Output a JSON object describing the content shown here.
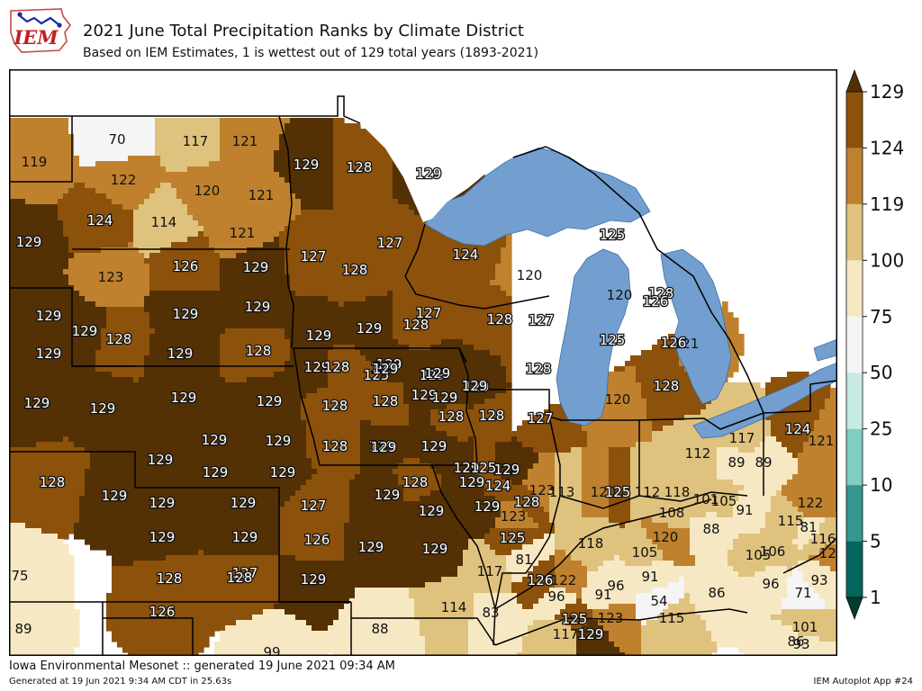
{
  "header": {
    "title": "2021 June Total Precipitation Ranks by Climate District",
    "subtitle": "Based on IEM Estimates, 1 is wettest out of 129 total years (1893-2021)",
    "logo_text": "IEM"
  },
  "footer": {
    "main": "Iowa Environmental Mesonet :: generated 19 June 2021 09:34 AM",
    "generated": "Generated at 19 Jun 2021 9:34 AM CDT in 25.63s",
    "app": "IEM Autoplot App #24"
  },
  "colors": {
    "water": "#729fcf",
    "land_blank": "#ffffff",
    "state_border": "#000000"
  },
  "colorbar": {
    "ticks": [
      "1",
      "5",
      "10",
      "25",
      "50",
      "75",
      "100",
      "119",
      "124",
      "129"
    ],
    "bins": [
      {
        "from": 1,
        "to": 5,
        "color": "#01665e"
      },
      {
        "from": 5,
        "to": 10,
        "color": "#35978f"
      },
      {
        "from": 10,
        "to": 25,
        "color": "#80cdc1"
      },
      {
        "from": 25,
        "to": 50,
        "color": "#c7eae5"
      },
      {
        "from": 50,
        "to": 75,
        "color": "#f5f5f5"
      },
      {
        "from": 75,
        "to": 100,
        "color": "#f6e8c3"
      },
      {
        "from": 100,
        "to": 119,
        "color": "#dfc27d"
      },
      {
        "from": 119,
        "to": 124,
        "color": "#bf812d"
      },
      {
        "from": 124,
        "to": 129,
        "color": "#8c510a"
      }
    ],
    "over_color": "#543005",
    "under_color": "#003c30"
  },
  "districts": [
    {
      "rank": 70
    },
    {
      "rank": 117
    },
    {
      "rank": 121
    },
    {
      "rank": 119
    },
    {
      "rank": 122
    },
    {
      "rank": 120
    },
    {
      "rank": 121
    },
    {
      "rank": 124
    },
    {
      "rank": 114
    },
    {
      "rank": 121
    },
    {
      "rank": 129
    },
    {
      "rank": 123
    },
    {
      "rank": 126
    },
    {
      "rank": 129
    },
    {
      "rank": 129
    },
    {
      "rank": 129
    },
    {
      "rank": 129
    },
    {
      "rank": 128
    },
    {
      "rank": 129
    },
    {
      "rank": 129
    },
    {
      "rank": 129
    },
    {
      "rank": 128
    },
    {
      "rank": 129
    },
    {
      "rank": 129
    },
    {
      "rank": 129
    },
    {
      "rank": 129
    },
    {
      "rank": 129
    },
    {
      "rank": 129
    },
    {
      "rank": 128
    },
    {
      "rank": 128
    },
    {
      "rank": 129
    },
    {
      "rank": 128
    },
    {
      "rank": 129
    },
    {
      "rank": 129
    },
    {
      "rank": 129
    },
    {
      "rank": 129
    },
    {
      "rank": 129
    },
    {
      "rank": 128
    },
    {
      "rank": 129
    },
    {
      "rank": 129
    },
    {
      "rank": 129
    },
    {
      "rank": 129
    },
    {
      "rank": 127
    },
    {
      "rank": 129
    },
    {
      "rank": 129
    },
    {
      "rank": 126
    },
    {
      "rank": 127
    },
    {
      "rank": 128
    },
    {
      "rank": 128
    },
    {
      "rank": 129
    },
    {
      "rank": 129
    },
    {
      "rank": 128
    },
    {
      "rank": 129
    },
    {
      "rank": 127
    },
    {
      "rank": 128
    },
    {
      "rank": 127
    },
    {
      "rank": 128
    },
    {
      "rank": 126
    },
    {
      "rank": 99
    },
    {
      "rank": 75
    },
    {
      "rank": 89
    },
    {
      "rank": 129
    },
    {
      "rank": 129
    },
    {
      "rank": 129
    },
    {
      "rank": 129
    },
    {
      "rank": 127
    },
    {
      "rank": 129
    },
    {
      "rank": 129
    },
    {
      "rank": 129
    },
    {
      "rank": 129
    },
    {
      "rank": 129
    },
    {
      "rank": 128
    },
    {
      "rank": 129
    },
    {
      "rank": 128
    },
    {
      "rank": 129
    },
    {
      "rank": 129
    },
    {
      "rank": 129
    },
    {
      "rank": 129
    },
    {
      "rank": 129
    },
    {
      "rank": 129
    },
    {
      "rank": 129
    },
    {
      "rank": 129
    },
    {
      "rank": 128
    },
    {
      "rank": 129
    },
    {
      "rank": 125
    },
    {
      "rank": 129
    },
    {
      "rank": 128
    },
    {
      "rank": 125
    },
    {
      "rank": 120
    },
    {
      "rank": 124
    },
    {
      "rank": 127
    },
    {
      "rank": 128
    },
    {
      "rank": 124
    },
    {
      "rank": 123
    },
    {
      "rank": 128
    },
    {
      "rank": 128
    },
    {
      "rank": 127
    },
    {
      "rank": 129
    },
    {
      "rank": 129
    },
    {
      "rank": 125
    },
    {
      "rank": 129
    },
    {
      "rank": 123
    },
    {
      "rank": 126
    },
    {
      "rank": 122
    },
    {
      "rank": 117
    },
    {
      "rank": 81
    },
    {
      "rank": 83
    },
    {
      "rank": 114
    },
    {
      "rank": 96
    },
    {
      "rank": 88
    },
    {
      "rank": 125
    },
    {
      "rank": 117
    },
    {
      "rank": 129
    },
    {
      "rank": 123
    },
    {
      "rank": 125
    },
    {
      "rank": 120
    },
    {
      "rank": 128
    },
    {
      "rank": 121
    },
    {
      "rank": 120
    },
    {
      "rank": 126
    },
    {
      "rank": 128
    },
    {
      "rank": 125
    },
    {
      "rank": 126
    },
    {
      "rank": 113
    },
    {
      "rank": 120
    },
    {
      "rank": 112
    },
    {
      "rank": 125
    },
    {
      "rank": 120
    },
    {
      "rank": 112
    },
    {
      "rank": 118
    },
    {
      "rank": 118
    },
    {
      "rank": 105
    },
    {
      "rank": 117
    },
    {
      "rank": 108
    },
    {
      "rank": 91
    },
    {
      "rank": 89
    },
    {
      "rank": 89
    },
    {
      "rank": 91
    },
    {
      "rank": 101
    },
    {
      "rank": 88
    },
    {
      "rank": 105
    },
    {
      "rank": 91
    },
    {
      "rank": 86
    },
    {
      "rank": 96
    },
    {
      "rank": 106
    },
    {
      "rank": 115
    },
    {
      "rank": 96
    },
    {
      "rank": 54
    },
    {
      "rank": 81
    },
    {
      "rank": 105
    },
    {
      "rank": 120
    },
    {
      "rank": 115
    },
    {
      "rank": 124
    },
    {
      "rank": 121
    },
    {
      "rank": 122
    },
    {
      "rank": 116
    },
    {
      "rank": 93
    },
    {
      "rank": 71
    },
    {
      "rank": 101
    },
    {
      "rank": 86
    },
    {
      "rank": 93
    }
  ]
}
